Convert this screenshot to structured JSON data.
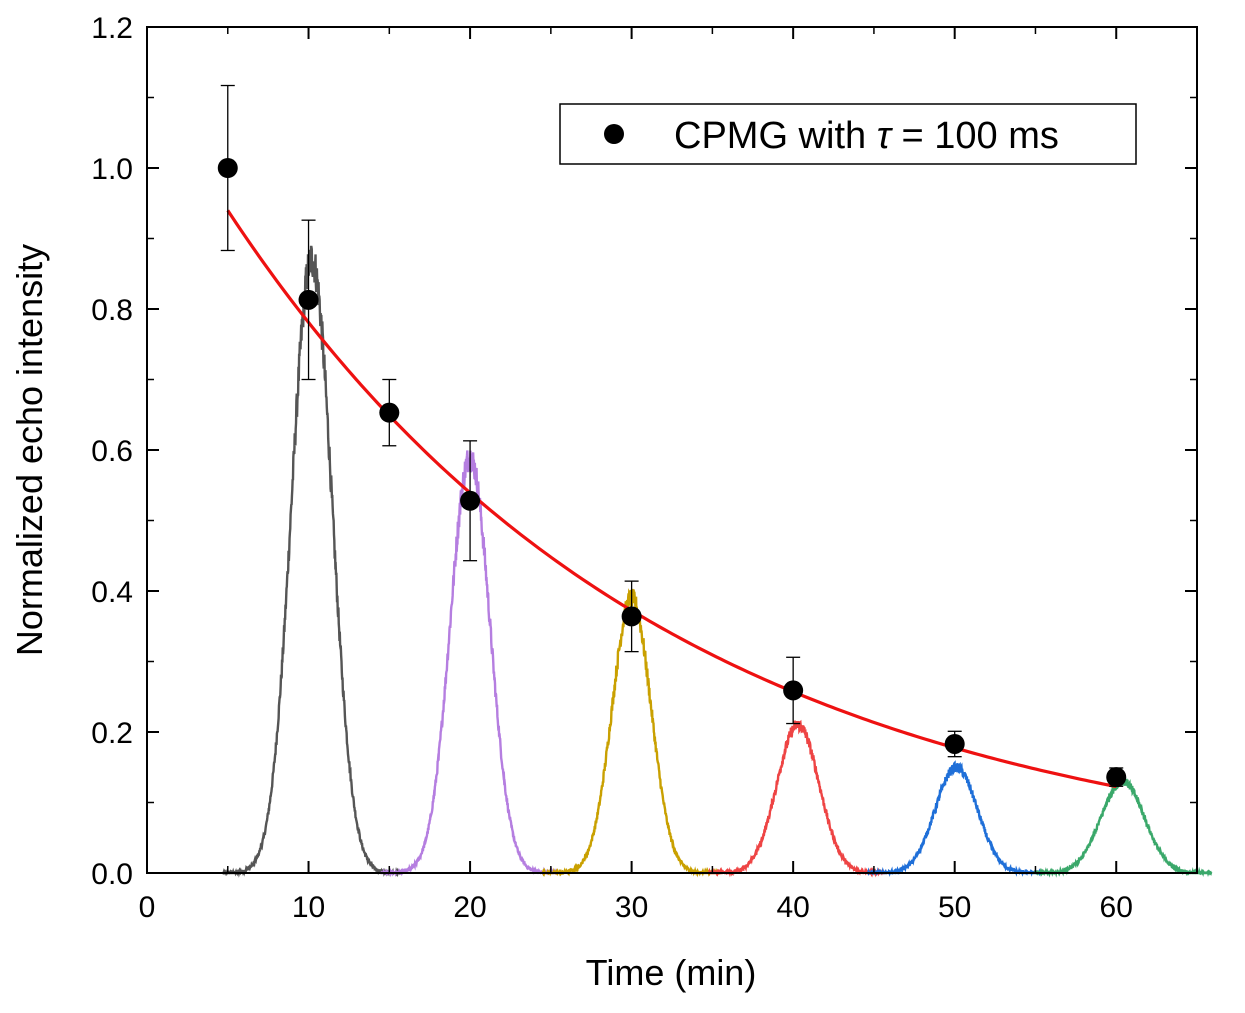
{
  "chart_data": {
    "type": "scatter",
    "xlabel": "Time (min)",
    "ylabel": "Normalized echo intensity",
    "xlim": [
      0,
      65
    ],
    "ylim": [
      0,
      1.2
    ],
    "xticks": [
      0,
      10,
      20,
      30,
      40,
      50,
      60
    ],
    "yticks": [
      0.0,
      0.2,
      0.4,
      0.6,
      0.8,
      1.0,
      1.2
    ],
    "xtick_labels": [
      "0",
      "10",
      "20",
      "30",
      "40",
      "50",
      "60"
    ],
    "ytick_labels": [
      "0.0",
      "0.2",
      "0.4",
      "0.6",
      "0.8",
      "1.0",
      "1.2"
    ],
    "legend_position": "top-right",
    "legend": {
      "prefix": "CPMG with ",
      "symbol": "τ",
      "suffix": " = 100 ms"
    },
    "series": [
      {
        "name": "CPMG with τ = 100 ms",
        "kind": "points-with-errorbars",
        "color": "#000000",
        "x": [
          5,
          10,
          15,
          20,
          30,
          40,
          50,
          60
        ],
        "y": [
          1.0,
          0.813,
          0.653,
          0.528,
          0.364,
          0.259,
          0.183,
          0.136
        ],
        "yerr": [
          0.117,
          0.113,
          0.047,
          0.085,
          0.05,
          0.047,
          0.018,
          0.013
        ]
      },
      {
        "kind": "fit-curve",
        "color": "#ee1111",
        "function": "exponential",
        "amplitude": 1.131,
        "decay_constant_min": 27.0,
        "x_range": [
          5,
          60
        ]
      },
      {
        "kind": "signal-peak",
        "color": "#555555",
        "center": 10.2,
        "height": 0.87,
        "width": 1.25
      },
      {
        "kind": "signal-peak",
        "color": "#b57ee0",
        "center": 20.0,
        "height": 0.59,
        "width": 1.22
      },
      {
        "kind": "signal-peak",
        "color": "#c9a000",
        "center": 30.0,
        "height": 0.39,
        "width": 1.2
      },
      {
        "kind": "signal-peak",
        "color": "#ee4444",
        "center": 40.3,
        "height": 0.21,
        "width": 1.3
      },
      {
        "kind": "signal-peak",
        "color": "#1f6fd8",
        "center": 50.1,
        "height": 0.15,
        "width": 1.3
      },
      {
        "kind": "signal-peak",
        "color": "#3aa86a",
        "center": 60.4,
        "height": 0.13,
        "width": 1.35
      }
    ]
  }
}
